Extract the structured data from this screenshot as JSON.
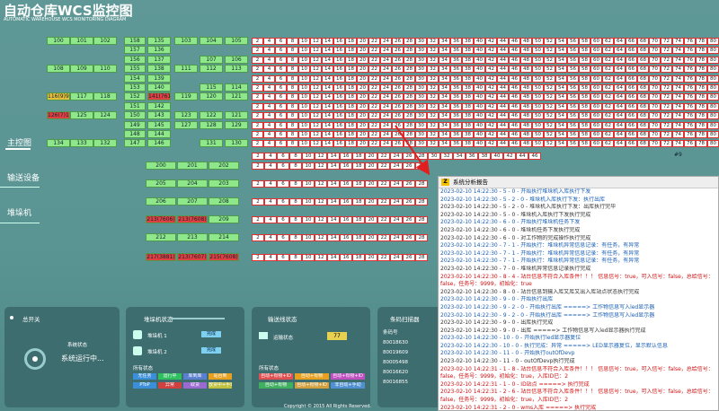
{
  "header": {
    "title": "自动仓库WCS监控图",
    "subtitle": "AUTOMATIC WAREHOUSE WCS MONITORING DIAGRAM"
  },
  "nav": [
    "主控图",
    "输送设备",
    "堆垛机"
  ],
  "stations": [
    [
      "100",
      "101",
      "102",
      "158",
      "135",
      "103",
      "104",
      "105"
    ],
    [
      "157",
      "136"
    ],
    [
      "156",
      "137",
      "107",
      "106"
    ],
    [
      "108",
      "109",
      "110",
      "155",
      "138",
      "111",
      "112",
      "113"
    ],
    [
      "154",
      "139"
    ],
    [
      "153",
      "140",
      "115",
      "114"
    ],
    [
      "116(9)999",
      "117",
      "118",
      "152",
      "141(7612)",
      "119",
      "120",
      "121"
    ],
    [
      "151",
      "142"
    ],
    [
      "126(7)14",
      "125",
      "124",
      "150",
      "143",
      "123",
      "122",
      "121"
    ],
    [
      "149",
      "145",
      "127",
      "128",
      "129"
    ],
    [
      "148",
      "144"
    ],
    [
      "134",
      "133",
      "132",
      "147",
      "146",
      "131",
      "130"
    ]
  ],
  "lower_stations": [
    [
      "200",
      "201",
      "202"
    ],
    [
      "205",
      "204",
      "203"
    ],
    [
      "206",
      "207",
      "208"
    ],
    [
      "213(7606)",
      "213(7608)",
      "209"
    ],
    [
      "212",
      "213",
      "214"
    ],
    [
      "217(3881)",
      "213(7607)",
      "215(7608)"
    ]
  ],
  "track_rows": [
    [
      2,
      4,
      6,
      8,
      10,
      12,
      14,
      16,
      18,
      20,
      22,
      24,
      26,
      28,
      30,
      32,
      34,
      36,
      38,
      40,
      42,
      44,
      46,
      48,
      50,
      52,
      54,
      56,
      58,
      60,
      62,
      64,
      66,
      68,
      70,
      72,
      74,
      76,
      78,
      80
    ],
    [
      2,
      4,
      6,
      8,
      10,
      12,
      14,
      16,
      18,
      20,
      22,
      24,
      26,
      28,
      30,
      32,
      34,
      36,
      38,
      40,
      42,
      44,
      46,
      48,
      50,
      52,
      54,
      56,
      58,
      60,
      62,
      64,
      66,
      68,
      70,
      72,
      74,
      76,
      78,
      80
    ],
    [
      2,
      4,
      6,
      8,
      10,
      12,
      14,
      16,
      18,
      20,
      22,
      24,
      26,
      28,
      30,
      32,
      34,
      36,
      38,
      40,
      42,
      44,
      46,
      48,
      50,
      52,
      54,
      56,
      58,
      60,
      62,
      64,
      66,
      68,
      70,
      72,
      74,
      76,
      78,
      80
    ],
    [
      2,
      4,
      6,
      8,
      10,
      12,
      14,
      16,
      18,
      20,
      22,
      24,
      26,
      28,
      30,
      32,
      34,
      36,
      38,
      40,
      42,
      44,
      46,
      48,
      50,
      52,
      54,
      56,
      58,
      60,
      62,
      64,
      66,
      68,
      70,
      72,
      74,
      76,
      78,
      80
    ],
    [
      2,
      4,
      6,
      8,
      10,
      12,
      14,
      16,
      18,
      20,
      22,
      24,
      26,
      28,
      30,
      32,
      34,
      36,
      38,
      40,
      42,
      44,
      46,
      48,
      50,
      52,
      54,
      56,
      58,
      60,
      62,
      64,
      66,
      68,
      70,
      72,
      74,
      76,
      78,
      80
    ],
    [
      2,
      4,
      6,
      8,
      10,
      12,
      14,
      16,
      18,
      20,
      22,
      24,
      26,
      28,
      30,
      32,
      34,
      36,
      38,
      40,
      42,
      44,
      46,
      48,
      50,
      52,
      54,
      56,
      58,
      60,
      62,
      64,
      66,
      68,
      70,
      72,
      74,
      76,
      78,
      80
    ],
    [
      2,
      4,
      6,
      8,
      10,
      12,
      14,
      16,
      18,
      20,
      22,
      24,
      26,
      28,
      30,
      32,
      34,
      36,
      38,
      40,
      42,
      44,
      46,
      48,
      50,
      52,
      54,
      56,
      58,
      60,
      62,
      64,
      66,
      68,
      70,
      72,
      74,
      76,
      78,
      80
    ],
    [
      2,
      4,
      6,
      8,
      10,
      12,
      14,
      16,
      18,
      20,
      22,
      24,
      26,
      28,
      30,
      32,
      34,
      36,
      38,
      40,
      42,
      44,
      46,
      48,
      50,
      52,
      54,
      56,
      58,
      60,
      62,
      64,
      66,
      68,
      70,
      72,
      74,
      76,
      78,
      80
    ],
    [
      2,
      4,
      6,
      8,
      10,
      12,
      14,
      16,
      18,
      20,
      22,
      24,
      26,
      28,
      30,
      32,
      34,
      36,
      38,
      40,
      42,
      44,
      46,
      48,
      50,
      52,
      54,
      56,
      58,
      60,
      62,
      64,
      66,
      68,
      70,
      72,
      74,
      76,
      78,
      80
    ],
    [
      2,
      4,
      6,
      8,
      10,
      12,
      14,
      16,
      18,
      20,
      22,
      24,
      26,
      28,
      30,
      32,
      34,
      36,
      38,
      40,
      42,
      44,
      46,
      48,
      50,
      52,
      54,
      56,
      58,
      60,
      62,
      64,
      66,
      68,
      70,
      72,
      74,
      76,
      78,
      80
    ],
    [
      2,
      4,
      6,
      8,
      10,
      12,
      14,
      16,
      18,
      20,
      22,
      24,
      26,
      28,
      30,
      32,
      34,
      36,
      38,
      40,
      42,
      44,
      46,
      48,
      50,
      52,
      54,
      56,
      58,
      60,
      62,
      64,
      66,
      68,
      70,
      72,
      74,
      76,
      78,
      80
    ],
    [
      2,
      4,
      6,
      8,
      10,
      12,
      14,
      16,
      18,
      20,
      22,
      24,
      26,
      28,
      30,
      32,
      34,
      36,
      38,
      40,
      42,
      44,
      46,
      48,
      50,
      52,
      54,
      56,
      58,
      60,
      62,
      64,
      66,
      68,
      70,
      72,
      74,
      76,
      78,
      80
    ]
  ],
  "long_track": {
    "cells": [
      2,
      4,
      6,
      8,
      10,
      12,
      14,
      16,
      18,
      20,
      22,
      24,
      26,
      28,
      30,
      32,
      34,
      36,
      38,
      40,
      42,
      44,
      46
    ],
    "tag": "#9"
  },
  "lower_tracks": [
    [
      2,
      4,
      6,
      8,
      10,
      12,
      14,
      16,
      18,
      20,
      22,
      24,
      26,
      28
    ],
    [
      2,
      4,
      6,
      8,
      10,
      12,
      14,
      16,
      18,
      20,
      22,
      24,
      26,
      28
    ],
    [
      2,
      4,
      6,
      8,
      10,
      12,
      14,
      16,
      18,
      20,
      22,
      24,
      26,
      28
    ],
    [
      2,
      4,
      6,
      8,
      10,
      12,
      14,
      16,
      18,
      20,
      22,
      24,
      26,
      28
    ],
    [
      2,
      4,
      6,
      8,
      10,
      12,
      14,
      16,
      18,
      20,
      22,
      24,
      26,
      28
    ],
    [
      2,
      4,
      6,
      8,
      10,
      12,
      14,
      16,
      18,
      20,
      22,
      24,
      26,
      28
    ]
  ],
  "log": {
    "title": "系统分析报告",
    "lines": [
      {
        "text": "2023-02-10 14:22:30 - 5 - 0 - 开始执行堆垛机入库执行下发",
        "level": "info"
      },
      {
        "text": "2023-02-10 14:22:30 - 5 - 2 - 0 - 堆垛机入库执行下发：执行出库",
        "level": "info"
      },
      {
        "text": "2023-02-10 14:22:30 - 5 - 2 - 0 - 堆垛机入库执行下发：出库执行完毕",
        "level": "done"
      },
      {
        "text": "2023-02-10 14:22:30 - 5 - 0 - 堆垛机入库执行下发执行完成",
        "level": "done"
      },
      {
        "text": "2023-02-10 14:22:30 - 6 - 0 - 开始执行堆垛机任务下发",
        "level": "info"
      },
      {
        "text": "2023-02-10 14:22:30 - 6 - 0 - 堆垛机任务下发执行完成",
        "level": "done"
      },
      {
        "text": "2023-02-10 14:22:30 - 6 - 0 - 对工作物的完成操作执行完成",
        "level": "done"
      },
      {
        "text": "2023-02-10 14:22:30 - 7 - 1 - 开始执行：堆垛机异常信息记录：有任务，有异常",
        "level": "info"
      },
      {
        "text": "2023-02-10 14:22:30 - 7 - 1 - 开始执行：堆垛机异常信息记录：有任务，有异常",
        "level": "info"
      },
      {
        "text": "2023-02-10 14:22:30 - 7 - 1 - 开始执行：堆垛机异常信息记录：有任务，有异常",
        "level": "info"
      },
      {
        "text": "2023-02-10 14:22:30 - 7 - 0 - 堆垛机异常信息记录执行完成",
        "level": "done"
      },
      {
        "text": "2023-02-10 14:22:30 - 8 - 4 - 站台信息不符合入库条件！！！ 信息信号：true，可入信号：false，总给信号：false，任务号：9999，初始化：true",
        "level": "error"
      },
      {
        "text": "2023-02-10 14:22:30 - 8 - 0 - 站台信息到输入库又库又出入库站点状态执行完成",
        "level": "done"
      },
      {
        "text": "2023-02-10 14:22:30 - 9 - 0 - 开始执行出库",
        "level": "info"
      },
      {
        "text": "2023-02-10 14:22:30 - 9 - 2 - 0 - 开始执行出库 =====> 工作物信息写入led显示器",
        "level": "info"
      },
      {
        "text": "2023-02-10 14:22:30 - 9 - 2 - 0 - 开始执行出库 =====> 工作物信息写入led显示器",
        "level": "info"
      },
      {
        "text": "2023-02-10 14:22:30 - 9 - 0 - 出库执行完成",
        "level": "done"
      },
      {
        "text": "2023-02-10 14:22:30 - 9 - 0 - 出库 =====> 工作物信息写入led显示器执行完成",
        "level": "done"
      },
      {
        "text": "2023-02-10 14:22:30 - 10 - 0 - 开始执行led显示器复位",
        "level": "info"
      },
      {
        "text": "2023-02-10 14:22:30 - 10 - 0 - 执行完成：异常 =====> LED显示器复位，显示默认信息",
        "level": "info"
      },
      {
        "text": "2023-02-10 14:22:30 - 11 - 0 - 开始执行outOfDevp",
        "level": "info"
      },
      {
        "text": "2023-02-10 14:22:30 - 11 - 0 - outOfDevp执行完成",
        "level": "done"
      },
      {
        "text": "2023-02-10 14:22:31 - 1 - 8 - 站台信息不符合入库条件！！！ 信息信号：true，可入信号：false，总给信号：false，任务号：9999，初始化：true，入库ID已：2",
        "level": "error"
      },
      {
        "text": "2023-02-10 14:22:31 - 1 - 0 - ID站点 =====> 执行完成",
        "level": "error"
      },
      {
        "text": "2023-02-10 14:22:31 - 2 - 6 - 站台信息不符合入库条件！！！ 信息信号：true，可入信号：false，总给信号：false，任务号：9999，初始化：true，入库ID已：2",
        "level": "error"
      },
      {
        "text": "2023-02-10 14:22:31 - 2 - 0 - wms入库 =====> 执行完成",
        "level": "error"
      }
    ]
  },
  "panels": {
    "power": {
      "title": "总开关",
      "status_label": "系统状态",
      "status": "系统运行中..."
    },
    "stacker": {
      "title": "堆垛机状态",
      "items": [
        {
          "name": "堆垛机 1",
          "state": "完成"
        },
        {
          "name": "堆垛机 2",
          "state": "完成"
        }
      ],
      "legend_title": "所有状态",
      "legend": [
        "无任务",
        "运行中",
        "库到库",
        "站台到",
        "PToP",
        "异常",
        "取货",
        "放货中+手动"
      ]
    },
    "conveyor": {
      "title": "输送线状态",
      "item": "运输状态",
      "count": 77,
      "legend_title": "所有状态",
      "legend": [
        "自动+有物+ID",
        "自动+有物",
        "自动+有物+ID",
        "自动+有物",
        "自动+有物+ID",
        "非自动+手动"
      ]
    },
    "scanner": {
      "title": "条码扫描器",
      "header": "条码号",
      "codes": [
        "80018630",
        "80019609",
        "80005498",
        "80016620",
        "80016855"
      ]
    }
  },
  "footer": "Copyright © 2015 All Rights Reserved."
}
